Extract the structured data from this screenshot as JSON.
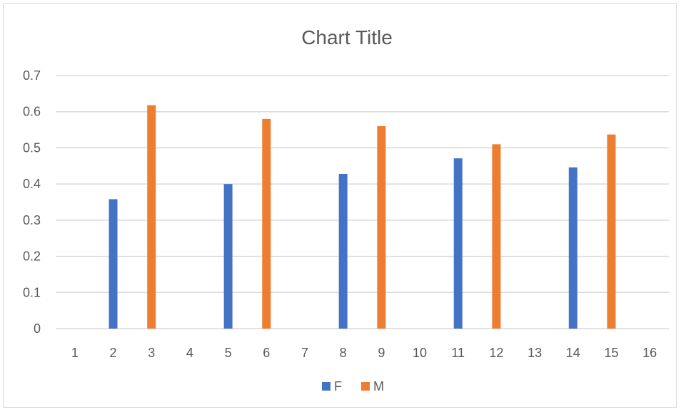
{
  "chart_data": {
    "type": "bar",
    "title": "Chart Title",
    "xlabel": "",
    "ylabel": "",
    "categories": [
      "1",
      "2",
      "3",
      "4",
      "5",
      "6",
      "7",
      "8",
      "9",
      "10",
      "11",
      "12",
      "13",
      "14",
      "15",
      "16"
    ],
    "ylim": [
      0,
      0.7
    ],
    "yticks": [
      "0",
      "0.1",
      "0.2",
      "0.3",
      "0.4",
      "0.5",
      "0.6",
      "0.7"
    ],
    "grid": true,
    "legend_position": "bottom",
    "series": [
      {
        "name": "F",
        "color": "#4472C4",
        "values": [
          null,
          0.358,
          null,
          null,
          0.4,
          null,
          null,
          0.428,
          null,
          null,
          0.471,
          null,
          null,
          0.446,
          null,
          null
        ]
      },
      {
        "name": "M",
        "color": "#ED7D31",
        "values": [
          null,
          null,
          0.618,
          null,
          null,
          0.58,
          null,
          null,
          0.56,
          null,
          null,
          0.51,
          null,
          null,
          0.537,
          null
        ]
      }
    ]
  }
}
